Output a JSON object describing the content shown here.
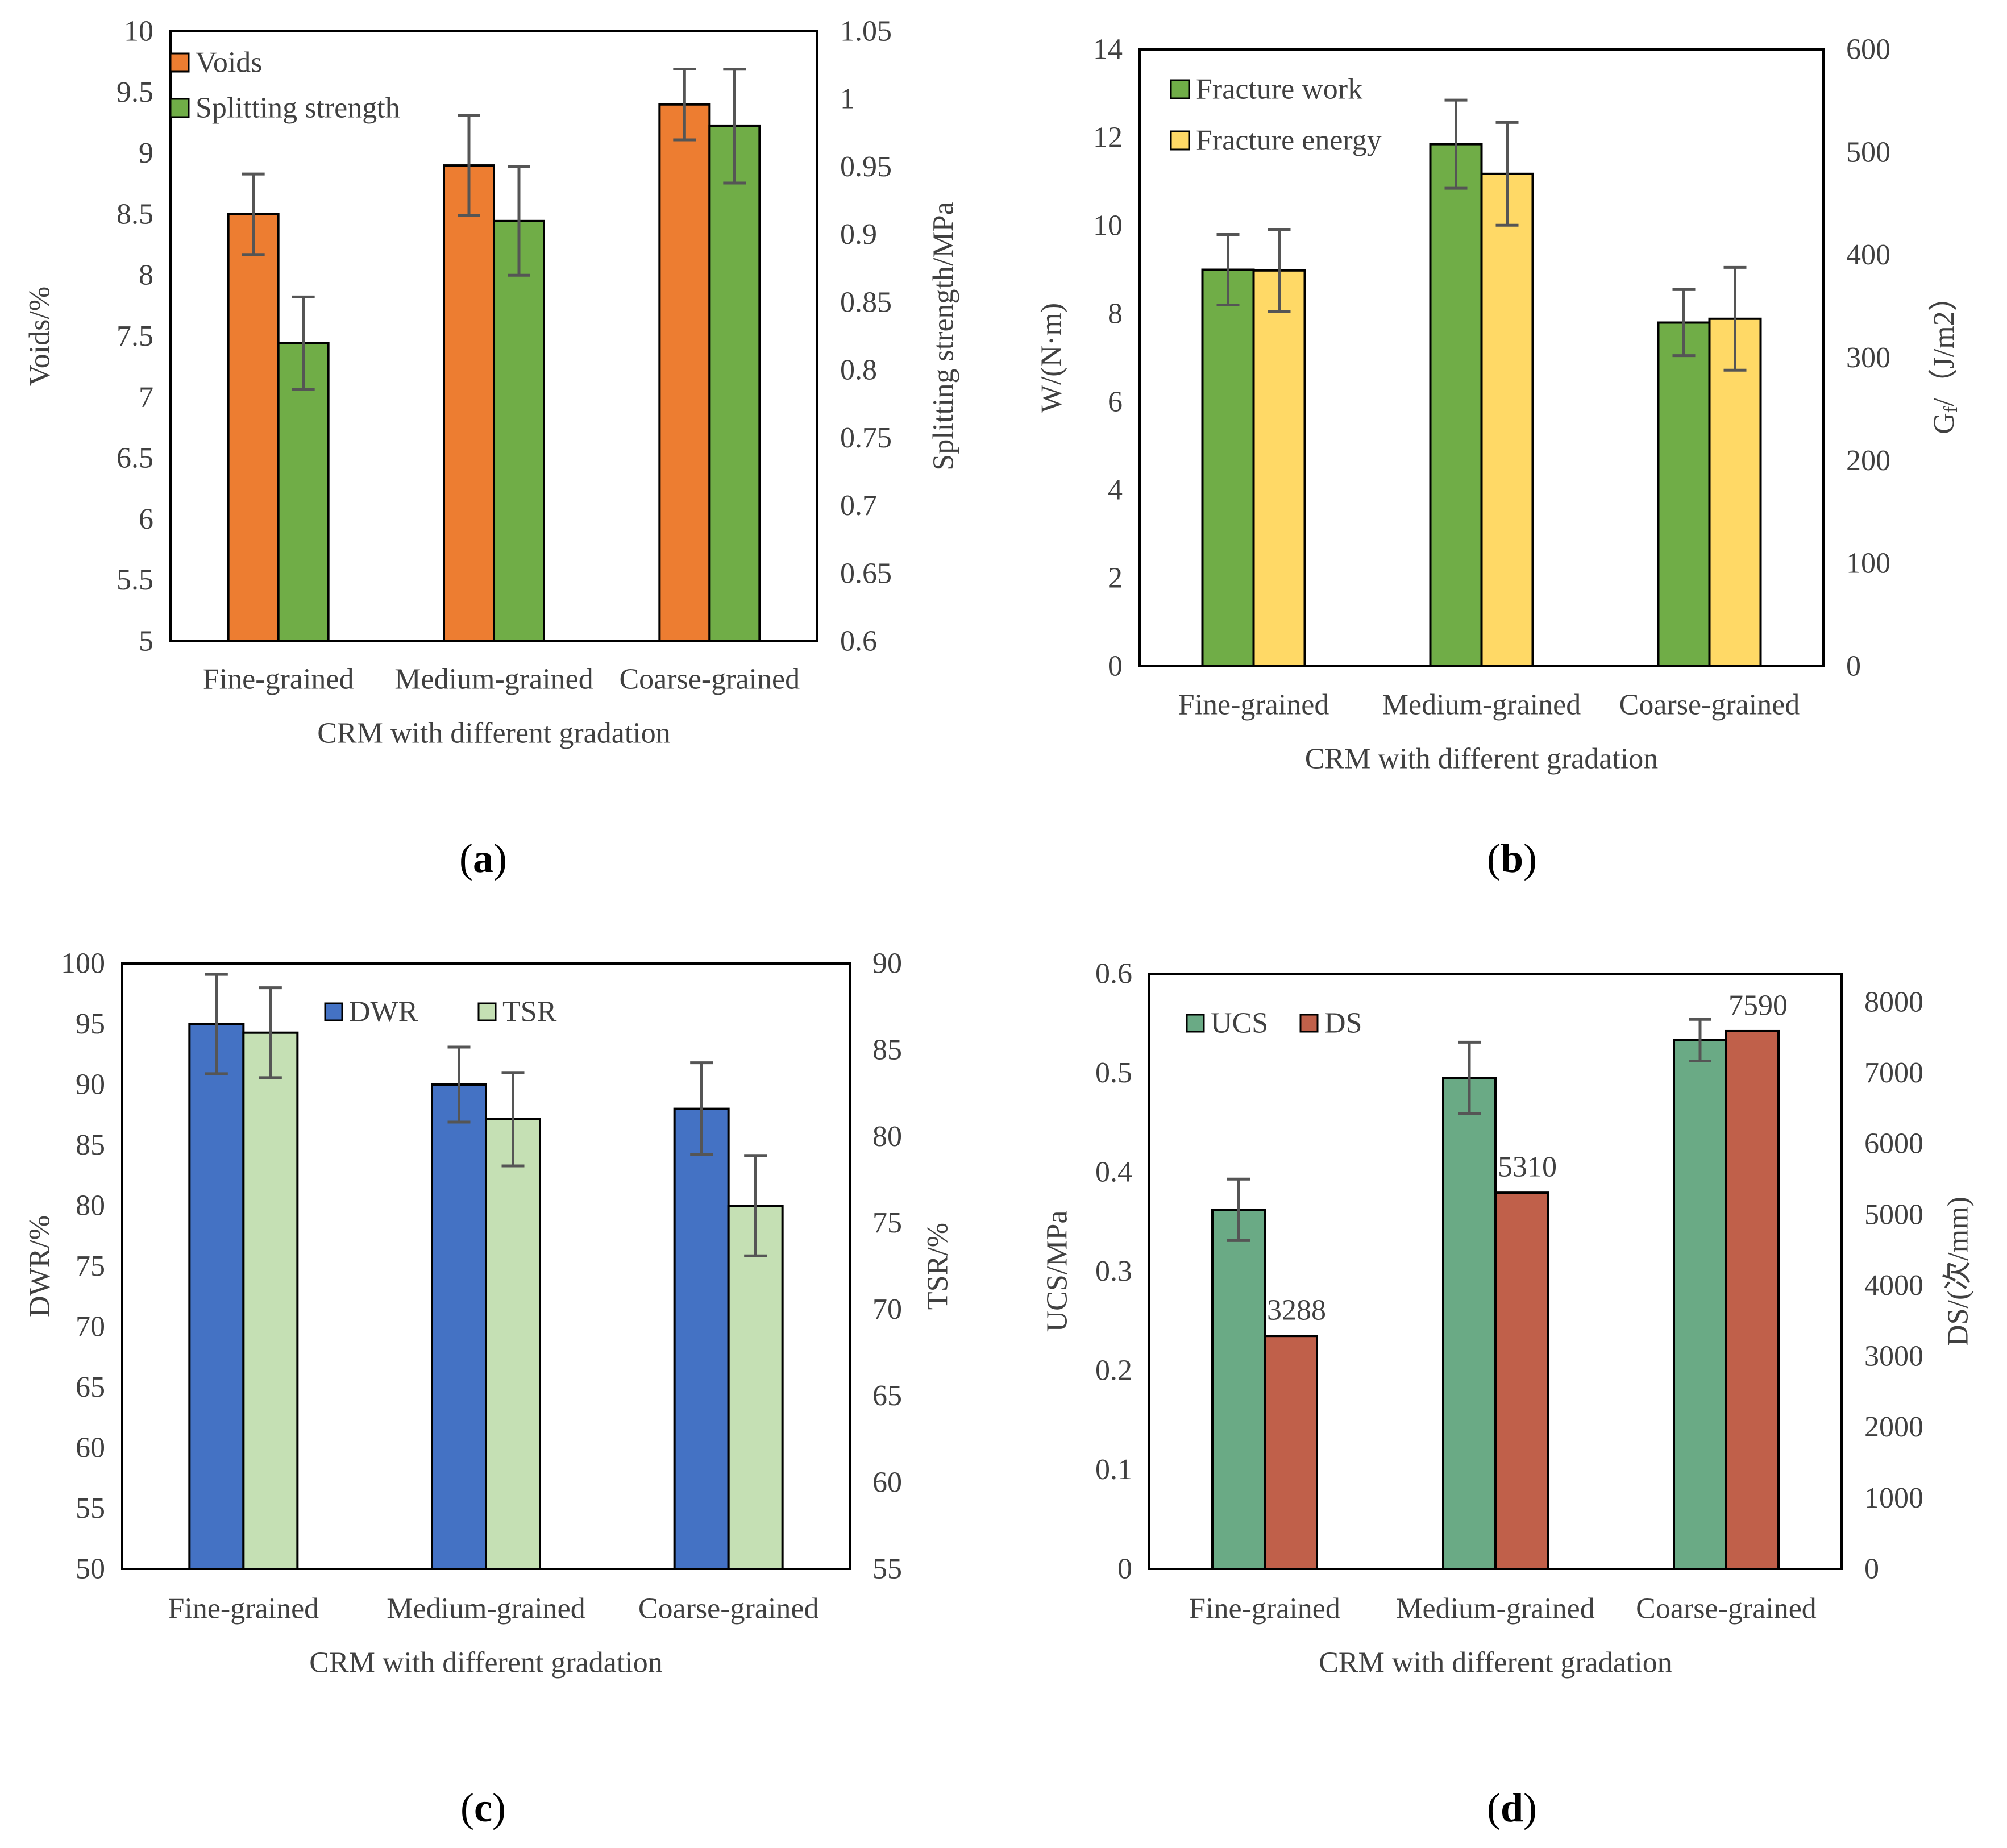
{
  "chart_data": [
    {
      "panel_label": "a",
      "type": "bar",
      "categories": [
        "Fine-grained",
        "Medium-grained",
        "Coarse-grained"
      ],
      "xlabel": "CRM with different gradation",
      "ylabel": "Voids/%",
      "y2label": "Splitting strength/MPa",
      "ylim": [
        5,
        10
      ],
      "y2lim": [
        0.6,
        1.05
      ],
      "yticks": [
        "5",
        "5.5",
        "6",
        "6.5",
        "7",
        "7.5",
        "8",
        "8.5",
        "9",
        "9.5",
        "10"
      ],
      "y2ticks": [
        "0.6",
        "0.65",
        "0.7",
        "0.75",
        "0.8",
        "0.85",
        "0.9",
        "0.95",
        "1",
        "1.05"
      ],
      "legend_position": "top-left",
      "legend_layout": "vertical",
      "series": [
        {
          "name": "Voids",
          "axis": "left",
          "color": "#ED7D31",
          "values": [
            8.5,
            8.9,
            9.4
          ],
          "errors": [
            0.33,
            0.41,
            0.29
          ]
        },
        {
          "name": "Splitting strength",
          "axis": "right",
          "color": "#70AD47",
          "values": [
            0.82,
            0.91,
            0.98
          ],
          "errors": [
            0.034,
            0.04,
            0.042
          ]
        }
      ]
    },
    {
      "panel_label": "b",
      "type": "bar",
      "categories": [
        "Fine-grained",
        "Medium-grained",
        "Coarse-grained"
      ],
      "xlabel": "CRM with different gradation",
      "ylabel": "W/(N·m)",
      "y2label_main": "G",
      "y2label_sub": "f",
      "y2label_rest": "/（J/m2）",
      "ylim": [
        0,
        14
      ],
      "y2lim": [
        0,
        600
      ],
      "yticks": [
        "0",
        "2",
        "4",
        "6",
        "8",
        "10",
        "12",
        "14"
      ],
      "y2ticks": [
        "0",
        "100",
        "200",
        "300",
        "400",
        "500",
        "600"
      ],
      "legend_position": "top-left",
      "legend_layout": "vertical",
      "series": [
        {
          "name": "Fracture work",
          "axis": "left",
          "color": "#70AD47",
          "values": [
            9.0,
            11.85,
            7.8
          ],
          "errors": [
            0.8,
            1.0,
            0.75
          ]
        },
        {
          "name": "Fracture energy",
          "axis": "right",
          "color": "#FFD966",
          "values": [
            385,
            479,
            338
          ],
          "errors": [
            40,
            50,
            50
          ]
        }
      ]
    },
    {
      "panel_label": "c",
      "type": "bar",
      "categories": [
        "Fine-grained",
        "Medium-grained",
        "Coarse-grained"
      ],
      "xlabel": "CRM with different gradation",
      "ylabel": "DWR/%",
      "y2label": "TSR/%",
      "ylim": [
        50,
        100
      ],
      "y2lim": [
        55,
        90
      ],
      "yticks": [
        "50",
        "55",
        "60",
        "65",
        "70",
        "75",
        "80",
        "85",
        "90",
        "95",
        "100"
      ],
      "y2ticks": [
        "55",
        "60",
        "65",
        "70",
        "75",
        "80",
        "85",
        "90"
      ],
      "legend_position": "top-center",
      "legend_layout": "horizontal",
      "series": [
        {
          "name": "DWR",
          "axis": "left",
          "color": "#4472C4",
          "values": [
            95.0,
            90.0,
            88.0
          ],
          "errors": [
            4.1,
            3.1,
            3.8
          ]
        },
        {
          "name": "TSR",
          "axis": "right",
          "color": "#C5E0B4",
          "values": [
            86.0,
            81.0,
            76.0
          ],
          "errors": [
            2.6,
            2.7,
            2.9
          ]
        }
      ]
    },
    {
      "panel_label": "d",
      "type": "bar",
      "categories": [
        "Fine-grained",
        "Medium-grained",
        "Coarse-grained"
      ],
      "xlabel": "CRM with different gradation",
      "ylabel": "UCS/MPa",
      "y2label": "DS/(次/mm)",
      "ylim": [
        0,
        0.6
      ],
      "y2lim": [
        0,
        8400
      ],
      "yticks": [
        "0",
        "0.1",
        "0.2",
        "0.3",
        "0.4",
        "0.5",
        "0.6"
      ],
      "y2ticks": [
        "0",
        "1000",
        "2000",
        "3000",
        "4000",
        "5000",
        "6000",
        "7000",
        "8000"
      ],
      "legend_position": "top-left",
      "legend_layout": "horizontal",
      "series": [
        {
          "name": "UCS",
          "axis": "left",
          "color": "#6AAA85",
          "values": [
            0.362,
            0.495,
            0.533
          ],
          "errors": [
            0.031,
            0.036,
            0.021
          ]
        },
        {
          "name": "DS",
          "axis": "right",
          "color": "#C0604A",
          "values": [
            3288,
            5310,
            7590
          ],
          "data_labels": [
            "3288",
            "5310",
            "7590"
          ]
        }
      ]
    }
  ]
}
